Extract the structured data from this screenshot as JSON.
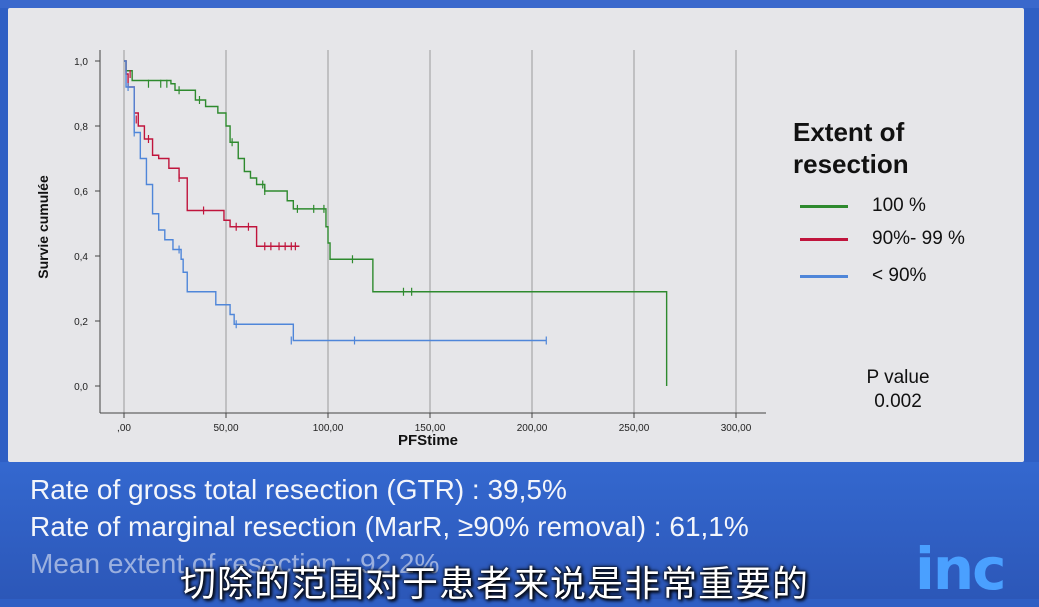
{
  "chart_data": {
    "type": "line",
    "title": "",
    "xlabel": "PFStime",
    "ylabel": "Survie cumulée",
    "xlim": [
      0,
      300
    ],
    "ylim": [
      0,
      1
    ],
    "x_ticks": [
      ",00",
      "50,00",
      "100,00",
      "150,00",
      "200,00",
      "250,00",
      "300,00"
    ],
    "x_tick_values": [
      0,
      50,
      100,
      150,
      200,
      250,
      300
    ],
    "y_ticks": [
      "0,0",
      "0,2",
      "0,4",
      "0,6",
      "0,8",
      "1,0"
    ],
    "y_tick_values": [
      0,
      0.2,
      0.4,
      0.6,
      0.8,
      1.0
    ],
    "grid": "vertical",
    "series": [
      {
        "name": "100 %",
        "color": "#2e8a2e",
        "steps": [
          [
            0,
            1.0
          ],
          [
            1,
            0.97
          ],
          [
            4,
            0.94
          ],
          [
            23,
            0.93
          ],
          [
            25,
            0.91
          ],
          [
            35,
            0.88
          ],
          [
            40,
            0.86
          ],
          [
            46,
            0.84
          ],
          [
            50,
            0.8
          ],
          [
            52,
            0.75
          ],
          [
            56,
            0.7
          ],
          [
            59,
            0.66
          ],
          [
            62,
            0.64
          ],
          [
            65,
            0.62
          ],
          [
            69,
            0.6
          ],
          [
            80,
            0.57
          ],
          [
            83,
            0.545
          ],
          [
            99,
            0.49
          ],
          [
            100,
            0.44
          ],
          [
            101,
            0.39
          ],
          [
            122,
            0.29
          ],
          [
            265,
            0.29
          ],
          [
            266,
            0.0
          ]
        ],
        "censored": [
          [
            12,
            0.93
          ],
          [
            18,
            0.93
          ],
          [
            21,
            0.93
          ],
          [
            27,
            0.91
          ],
          [
            37,
            0.88
          ],
          [
            53,
            0.75
          ],
          [
            68,
            0.62
          ],
          [
            69,
            0.6
          ],
          [
            85,
            0.545
          ],
          [
            93,
            0.545
          ],
          [
            98,
            0.545
          ],
          [
            112,
            0.39
          ],
          [
            137,
            0.29
          ],
          [
            141,
            0.29
          ]
        ]
      },
      {
        "name": "90%- 99 %",
        "color": "#c0143c",
        "steps": [
          [
            0,
            1.0
          ],
          [
            1,
            0.96
          ],
          [
            2,
            0.92
          ],
          [
            5,
            0.84
          ],
          [
            7,
            0.8
          ],
          [
            10,
            0.76
          ],
          [
            14,
            0.71
          ],
          [
            17,
            0.7
          ],
          [
            22,
            0.67
          ],
          [
            27,
            0.64
          ],
          [
            31,
            0.54
          ],
          [
            45,
            0.54
          ],
          [
            49,
            0.51
          ],
          [
            52,
            0.49
          ],
          [
            65,
            0.43
          ],
          [
            86,
            0.43
          ]
        ],
        "censored": [
          [
            3,
            0.96
          ],
          [
            6,
            0.82
          ],
          [
            12,
            0.76
          ],
          [
            27,
            0.64
          ],
          [
            39,
            0.54
          ],
          [
            55,
            0.49
          ],
          [
            61,
            0.49
          ],
          [
            69,
            0.43
          ],
          [
            72,
            0.43
          ],
          [
            76,
            0.43
          ],
          [
            79,
            0.43
          ],
          [
            82,
            0.43
          ],
          [
            84,
            0.43
          ]
        ]
      },
      {
        "name": "< 90%",
        "color": "#4f86d9",
        "steps": [
          [
            0,
            1.0
          ],
          [
            1,
            0.92
          ],
          [
            5,
            0.78
          ],
          [
            8,
            0.7
          ],
          [
            11,
            0.62
          ],
          [
            14,
            0.53
          ],
          [
            17,
            0.48
          ],
          [
            20,
            0.45
          ],
          [
            24,
            0.42
          ],
          [
            28,
            0.39
          ],
          [
            29,
            0.35
          ],
          [
            31,
            0.29
          ],
          [
            45,
            0.25
          ],
          [
            52,
            0.22
          ],
          [
            54,
            0.19
          ],
          [
            82,
            0.19
          ],
          [
            83,
            0.14
          ],
          [
            207,
            0.14
          ]
        ],
        "censored": [
          [
            2,
            0.92
          ],
          [
            5,
            0.78
          ],
          [
            27,
            0.42
          ],
          [
            55,
            0.19
          ],
          [
            82,
            0.14
          ],
          [
            113,
            0.14
          ],
          [
            207,
            0.14
          ]
        ]
      }
    ]
  },
  "legend": {
    "title": "Extent of resection",
    "items": [
      {
        "label": "100 %",
        "color": "#2e8a2e"
      },
      {
        "label": "90%- 99 %",
        "color": "#c0143c"
      },
      {
        "label": "< 90%",
        "color": "#4f86d9"
      }
    ]
  },
  "pvalue": {
    "label": "P value",
    "value": "0.002"
  },
  "stats": [
    "Rate of gross total resection (GTR) : 39,5%",
    "Rate of marginal resection (MarR, ≥90% removal) : 61,1%",
    "Mean extent of resection : 92,2%"
  ],
  "subtitle": "切除的范围对于患者来说是非常重要的",
  "logo": "inc"
}
